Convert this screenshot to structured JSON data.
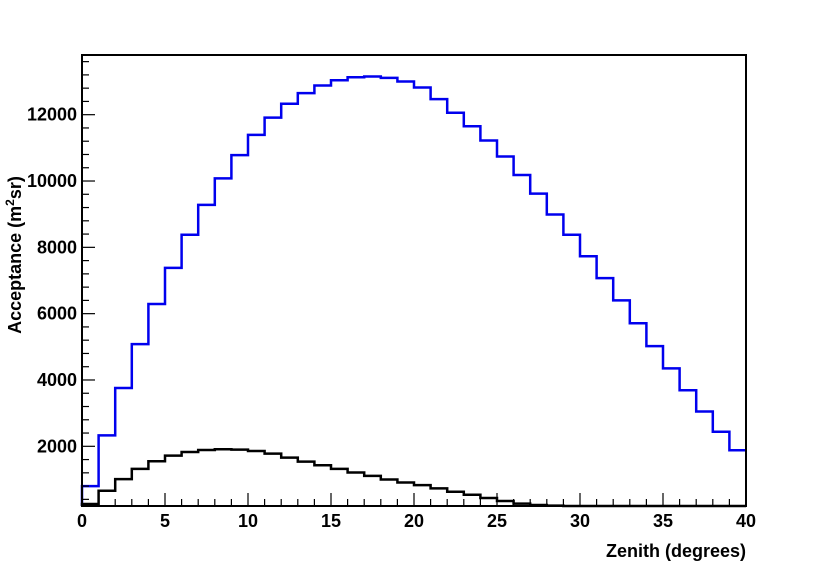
{
  "chart_data": {
    "type": "histogram",
    "title": "",
    "xlabel": "Zenith (degrees)",
    "ylabel": {
      "prefix": "Acceptance (m",
      "superscript": "2",
      "suffix": "sr)"
    },
    "xlim": [
      0,
      40
    ],
    "ylim": [
      200,
      13800
    ],
    "x_ticks": [
      0,
      5,
      10,
      15,
      20,
      25,
      30,
      35,
      40
    ],
    "x_tick_labels": [
      "0",
      "5",
      "10",
      "15",
      "20",
      "25",
      "30",
      "35",
      "40"
    ],
    "y_ticks": [
      2000,
      4000,
      6000,
      8000,
      10000,
      12000
    ],
    "y_tick_labels": [
      "2000",
      "4000",
      "6000",
      "8000",
      "10000",
      "12000"
    ],
    "grid": false,
    "legend": false,
    "bin_edges": [
      0,
      1,
      2,
      3,
      4,
      5,
      6,
      7,
      8,
      9,
      10,
      11,
      12,
      13,
      14,
      15,
      16,
      17,
      18,
      19,
      20,
      21,
      22,
      23,
      24,
      25,
      26,
      27,
      28,
      29,
      30,
      31,
      32,
      33,
      34,
      35,
      36,
      37,
      38,
      39,
      40
    ],
    "series": [
      {
        "color": "#0000ee",
        "values": [
          800,
          2330,
          3760,
          5080,
          6290,
          7380,
          8380,
          9280,
          10080,
          10780,
          11390,
          11910,
          12330,
          12650,
          12880,
          13040,
          13130,
          13150,
          13110,
          13000,
          12820,
          12470,
          12060,
          11650,
          11220,
          10740,
          10180,
          9620,
          8990,
          8380,
          7730,
          7070,
          6400,
          5710,
          5020,
          4350,
          3690,
          3050,
          2440,
          1880
        ]
      },
      {
        "color": "#000000",
        "values": [
          260,
          660,
          1010,
          1320,
          1550,
          1720,
          1830,
          1890,
          1910,
          1900,
          1860,
          1780,
          1660,
          1540,
          1430,
          1320,
          1210,
          1110,
          1000,
          910,
          830,
          730,
          630,
          540,
          440,
          350,
          270,
          230,
          210,
          200,
          200,
          200,
          200,
          200,
          200,
          200,
          200,
          200,
          200,
          200
        ]
      }
    ]
  }
}
